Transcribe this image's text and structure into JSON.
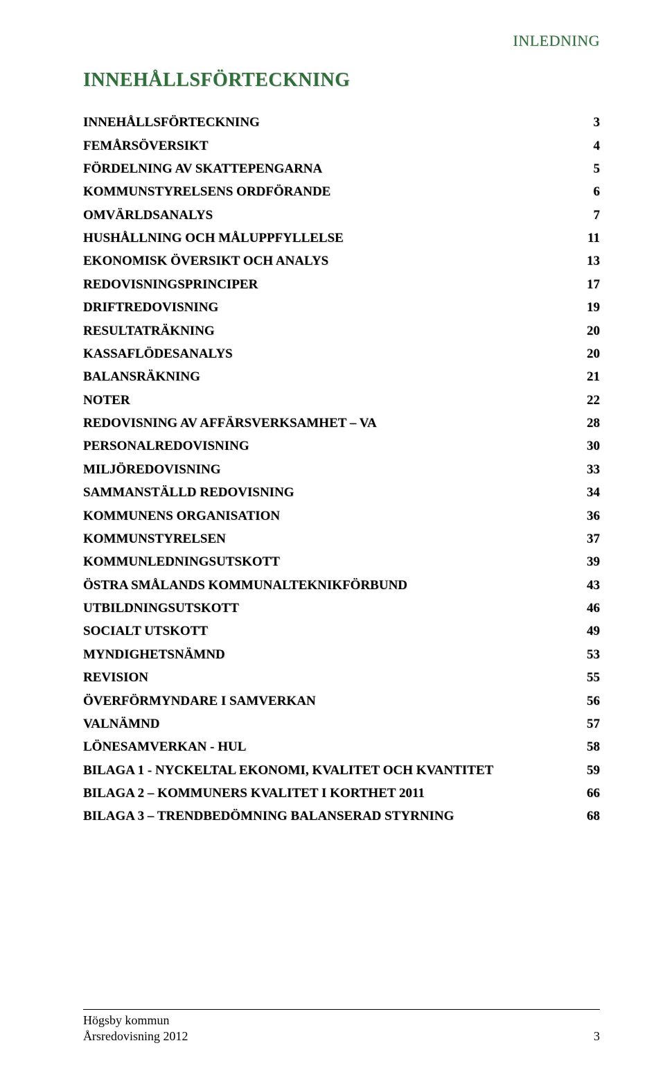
{
  "colors": {
    "running_header": "#2f6f3a",
    "section_title": "#2f6f3a",
    "text": "#000000",
    "background": "#ffffff",
    "rule": "#000000"
  },
  "typography": {
    "body_family": "Times New Roman",
    "running_header_fontsize_pt": 16,
    "section_title_fontsize_pt": 21,
    "toc_fontsize_pt": 14,
    "toc_fontweight": "bold",
    "footer_fontsize_pt": 13
  },
  "running_header": "INLEDNING",
  "section_title": "INNEHÅLLSFÖRTECKNING",
  "toc": [
    {
      "label": "INNEHÅLLSFÖRTECKNING",
      "page": 3
    },
    {
      "label": "FEMÅRSÖVERSIKT",
      "page": 4
    },
    {
      "label": "FÖRDELNING AV SKATTEPENGARNA",
      "page": 5
    },
    {
      "label": "KOMMUNSTYRELSENS ORDFÖRANDE",
      "page": 6
    },
    {
      "label": "OMVÄRLDSANALYS",
      "page": 7
    },
    {
      "label": "HUSHÅLLNING OCH MÅLUPPFYLLELSE",
      "page": 11
    },
    {
      "label": "EKONOMISK ÖVERSIKT OCH ANALYS",
      "page": 13
    },
    {
      "label": "REDOVISNINGSPRINCIPER",
      "page": 17
    },
    {
      "label": "DRIFTREDOVISNING",
      "page": 19
    },
    {
      "label": "RESULTATRÄKNING",
      "page": 20
    },
    {
      "label": "KASSAFLÖDESANALYS",
      "page": 20
    },
    {
      "label": "BALANSRÄKNING",
      "page": 21
    },
    {
      "label": "NOTER",
      "page": 22
    },
    {
      "label": "REDOVISNING AV AFFÄRSVERKSAMHET – VA",
      "page": 28
    },
    {
      "label": "PERSONALREDOVISNING",
      "page": 30
    },
    {
      "label": "MILJÖREDOVISNING",
      "page": 33
    },
    {
      "label": "SAMMANSTÄLLD REDOVISNING",
      "page": 34
    },
    {
      "label": "KOMMUNENS ORGANISATION",
      "page": 36
    },
    {
      "label": "KOMMUNSTYRELSEN",
      "page": 37
    },
    {
      "label": "KOMMUNLEDNINGSUTSKOTT",
      "page": 39
    },
    {
      "label": "ÖSTRA SMÅLANDS KOMMUNALTEKNIKFÖRBUND",
      "page": 43
    },
    {
      "label": "UTBILDNINGSUTSKOTT",
      "page": 46
    },
    {
      "label": "SOCIALT UTSKOTT",
      "page": 49
    },
    {
      "label": "MYNDIGHETSNÄMND",
      "page": 53
    },
    {
      "label": "REVISION",
      "page": 55
    },
    {
      "label": "ÖVERFÖRMYNDARE I SAMVERKAN",
      "page": 56
    },
    {
      "label": "VALNÄMND",
      "page": 57
    },
    {
      "label": "LÖNESAMVERKAN - HUL",
      "page": 58
    },
    {
      "label": "BILAGA 1 - NYCKELTAL EKONOMI, KVALITET OCH KVANTITET",
      "page": 59
    },
    {
      "label": "BILAGA 2 – KOMMUNERS KVALITET I KORTHET 2011",
      "page": 66
    },
    {
      "label": "BILAGA 3 – TRENDBEDÖMNING BALANSERAD STYRNING",
      "page": 68
    }
  ],
  "footer": {
    "line1": "Högsby kommun",
    "line2": "Årsredovisning 2012",
    "page_number": 3
  }
}
